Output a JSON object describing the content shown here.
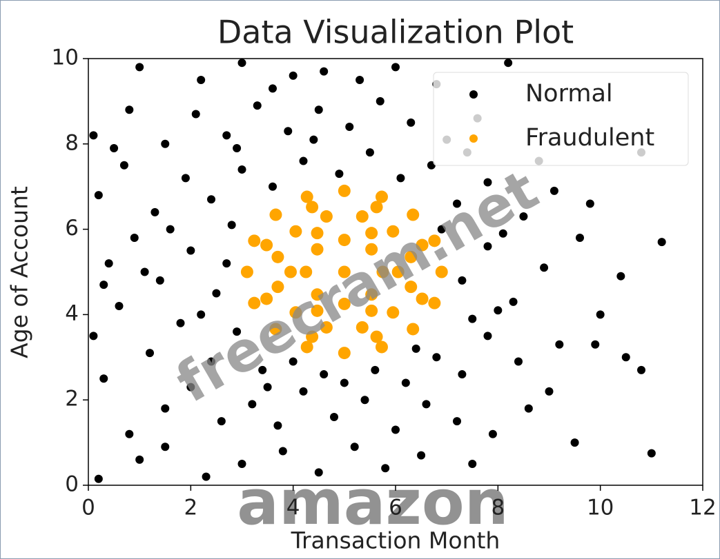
{
  "chart_data": {
    "type": "scatter",
    "title": "Data Visualization Plot",
    "x_label": "Transaction Month",
    "y_label": "Age of Account",
    "xlim": [
      0,
      12
    ],
    "ylim": [
      0,
      10
    ],
    "xticks": [
      0,
      2,
      4,
      6,
      8,
      10,
      12
    ],
    "yticks": [
      0,
      2,
      4,
      6,
      8,
      10
    ],
    "grid": false,
    "legend": "upper right",
    "watermarks": [
      "freecram.net",
      "amazon"
    ],
    "series": [
      {
        "name": "Normal",
        "color": "#000000",
        "x": [
          0.2,
          1.0,
          1.5,
          2.3,
          3.0,
          3.8,
          4.5,
          5.2,
          5.8,
          6.5,
          7.5,
          11.0,
          0.3,
          0.8,
          1.5,
          2.0,
          2.6,
          3.2,
          3.7,
          4.2,
          4.8,
          5.4,
          6.0,
          6.6,
          7.2,
          7.9,
          8.6,
          9.5,
          10.8,
          0.1,
          0.6,
          1.2,
          1.8,
          2.4,
          2.9,
          3.4,
          4.0,
          4.6,
          5.6,
          6.2,
          6.8,
          7.3,
          7.8,
          8.4,
          9.2,
          10.0,
          0.4,
          0.9,
          1.4,
          2.0,
          2.5,
          2.8,
          7.3,
          7.8,
          8.3,
          8.9,
          9.6,
          10.4,
          11.2,
          0.2,
          0.7,
          1.3,
          1.9,
          2.4,
          3.0,
          3.6,
          4.2,
          4.9,
          5.5,
          6.1,
          6.7,
          7.2,
          7.8,
          8.5,
          9.1,
          9.8,
          0.1,
          0.8,
          1.5,
          2.1,
          2.7,
          3.3,
          3.9,
          4.5,
          5.1,
          5.7,
          6.3,
          7.0,
          7.6,
          10.8,
          1.0,
          2.2,
          3.0,
          3.6,
          4.0,
          4.6,
          5.3,
          6.0,
          6.8,
          8.2,
          0.5,
          1.1,
          2.2,
          2.7,
          7.5,
          8.0,
          3.5,
          5.0,
          6.4,
          2.9,
          4.4,
          6.9,
          7.4,
          8.8,
          9.9,
          10.5,
          9.0,
          1.6,
          0.3,
          8.1
        ],
        "y": [
          0.15,
          0.6,
          0.9,
          0.2,
          0.5,
          0.8,
          0.3,
          0.9,
          0.4,
          0.7,
          0.5,
          0.75,
          2.5,
          1.2,
          1.8,
          2.3,
          1.5,
          1.9,
          1.4,
          2.2,
          1.6,
          2.0,
          1.3,
          1.9,
          1.5,
          1.2,
          1.8,
          1.0,
          2.7,
          3.5,
          4.2,
          3.1,
          3.8,
          2.9,
          3.6,
          2.7,
          2.9,
          2.6,
          2.7,
          2.4,
          3.0,
          2.6,
          3.5,
          2.9,
          3.3,
          4.0,
          5.2,
          5.8,
          4.8,
          5.5,
          4.5,
          6.1,
          4.8,
          5.6,
          4.3,
          5.1,
          5.8,
          4.9,
          5.7,
          6.8,
          7.5,
          6.4,
          7.2,
          6.7,
          7.4,
          7.0,
          7.6,
          7.3,
          7.8,
          7.2,
          7.5,
          6.6,
          7.1,
          6.3,
          6.9,
          6.6,
          8.2,
          8.8,
          8.0,
          8.7,
          8.2,
          8.9,
          8.3,
          8.8,
          8.4,
          9.0,
          8.5,
          8.1,
          8.6,
          7.8,
          9.8,
          9.5,
          9.9,
          9.3,
          9.6,
          9.7,
          9.5,
          9.8,
          9.4,
          9.9,
          7.9,
          5.0,
          4.0,
          5.2,
          3.9,
          4.1,
          2.3,
          2.4,
          3.2,
          7.9,
          8.1,
          6.0,
          7.8,
          7.6,
          3.3,
          3.0,
          2.2,
          6.0,
          4.7,
          5.9
        ]
      },
      {
        "name": "Fraudulent",
        "color": "#ffa500",
        "x": [
          6.9,
          6.76,
          6.34,
          5.73,
          5,
          4.27,
          3.66,
          3.24,
          3.1,
          3.24,
          3.66,
          4.27,
          5,
          5.73,
          6.34,
          6.76,
          6.52,
          5.63,
          4.37,
          3.48,
          3.48,
          4.37,
          5.63,
          6.52,
          6.3,
          5.95,
          5.35,
          4.65,
          4.05,
          3.7,
          3.7,
          4.05,
          4.65,
          5.35,
          5.95,
          6.3,
          6.05,
          5.53,
          4.47,
          3.95,
          4.47,
          5.53,
          5.75,
          5.53,
          5,
          4.47,
          4.25,
          4.47,
          5,
          5.53,
          5
        ],
        "y": [
          5,
          5.73,
          6.34,
          6.76,
          6.9,
          6.76,
          6.34,
          5.73,
          5,
          4.27,
          3.66,
          3.24,
          3.1,
          3.24,
          3.66,
          4.27,
          5.63,
          6.52,
          6.52,
          5.63,
          4.37,
          3.48,
          3.48,
          4.37,
          5.35,
          5.95,
          6.3,
          6.3,
          5.95,
          5.35,
          4.65,
          4.05,
          3.7,
          3.7,
          4.05,
          4.65,
          5,
          5.91,
          5.91,
          5,
          4.09,
          4.09,
          5,
          5.53,
          5.75,
          5.53,
          5,
          4.47,
          4.25,
          4.47,
          5
        ]
      }
    ]
  }
}
